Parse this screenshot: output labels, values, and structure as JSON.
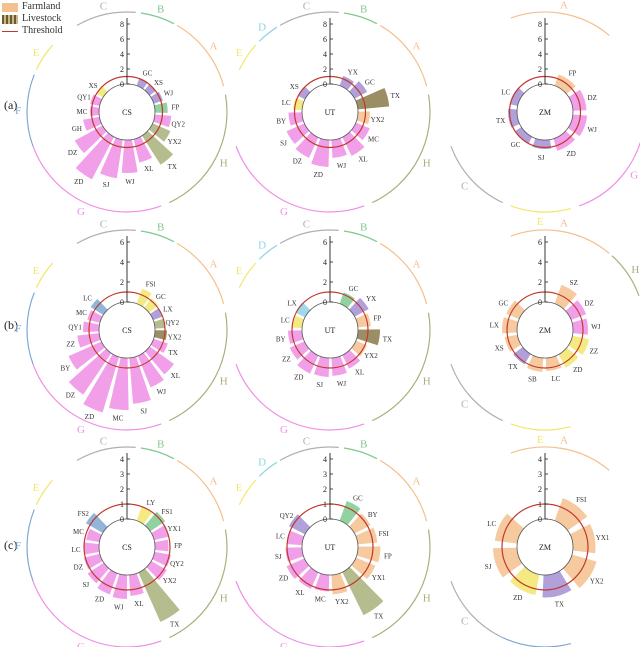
{
  "legend": {
    "farmland": "Farmland",
    "livestock": "Livestock",
    "threshold": "Threshold"
  },
  "row_labels": [
    "(a)",
    "(b)",
    "(c)"
  ],
  "colors": {
    "farmland": "#f4c08e",
    "livestock": "#8a7a4a",
    "threshold": "#c0392b",
    "region_A": "#f4c08e",
    "region_B": "#7fc98f",
    "region_C": "#b0b0b0",
    "region_D": "#8fd4e6",
    "region_E": "#f2e66b",
    "region_F": "#7fa8d4",
    "region_G": "#f08ee6",
    "region_H": "#a8b07a",
    "purple": "#a58fd4"
  },
  "chart_data": [
    {
      "type": "bar",
      "polar": true,
      "center_label": "CS",
      "row": "(a)",
      "axis_ticks": [
        "0",
        "2",
        "4",
        "6",
        "8"
      ],
      "rmax": 8,
      "regions": [
        "E",
        "C",
        "B",
        "A",
        "H",
        "G",
        "F"
      ],
      "labeled_categories": [
        "GC",
        "FP",
        "QY2",
        "YX2",
        "TX",
        "XL",
        "WJ",
        "SJ",
        "ZD",
        "DZ",
        "GH",
        "MC",
        "QY1",
        "XS"
      ],
      "bars": [
        {
          "cat": "GC",
          "v": 1.1,
          "c": "purple"
        },
        {
          "cat": "XS",
          "v": 1.0,
          "c": "purple"
        },
        {
          "cat": "WJ",
          "v": 1.3,
          "c": "purple"
        },
        {
          "cat": "FP",
          "v": 1.7,
          "c": "region_B"
        },
        {
          "cat": "QY2",
          "v": 2.2,
          "c": "region_G"
        },
        {
          "cat": "YX2",
          "v": 2.6,
          "c": "region_H"
        },
        {
          "cat": "TX",
          "v": 4.6,
          "c": "region_H"
        },
        {
          "cat": "XL",
          "v": 3.2,
          "c": "region_G"
        },
        {
          "cat": "WJ",
          "v": 4.4,
          "c": "region_G"
        },
        {
          "cat": "SJ",
          "v": 5.2,
          "c": "region_G"
        },
        {
          "cat": "ZD",
          "v": 6.4,
          "c": "region_G"
        },
        {
          "cat": "DZ",
          "v": 4.2,
          "c": "region_G"
        },
        {
          "cat": "GH",
          "v": 2.2,
          "c": "region_G"
        },
        {
          "cat": "MC",
          "v": 1.2,
          "c": "region_G"
        },
        {
          "cat": "QY1",
          "v": 1.3,
          "c": "region_G"
        },
        {
          "cat": "XS",
          "v": 1.0,
          "c": "region_E"
        }
      ]
    },
    {
      "type": "bar",
      "polar": true,
      "center_label": "UT",
      "row": "(a)",
      "axis_ticks": [
        "0",
        "2",
        "4",
        "6",
        "8"
      ],
      "rmax": 8,
      "regions": [
        "D",
        "B",
        "A",
        "E",
        "H",
        "G",
        "C"
      ],
      "labeled_categories": [
        "YX",
        "GC",
        "TX",
        "MC",
        "XL",
        "WJ",
        "ZD",
        "DZ",
        "SJ",
        "BY",
        "LC",
        "XS"
      ],
      "bars": [
        {
          "cat": "YX",
          "v": 1.4,
          "c": "purple"
        },
        {
          "cat": "GC",
          "v": 1.9,
          "c": "purple"
        },
        {
          "cat": "TX",
          "v": 4.2,
          "c": "livestock"
        },
        {
          "cat": "YX2",
          "v": 1.6,
          "c": "region_A"
        },
        {
          "cat": "MC",
          "v": 2.0,
          "c": "region_G"
        },
        {
          "cat": "XL",
          "v": 2.8,
          "c": "region_G"
        },
        {
          "cat": "WJ",
          "v": 2.4,
          "c": "region_G"
        },
        {
          "cat": "ZD",
          "v": 3.6,
          "c": "region_G"
        },
        {
          "cat": "DZ",
          "v": 3.0,
          "c": "region_G"
        },
        {
          "cat": "SJ",
          "v": 2.6,
          "c": "region_G"
        },
        {
          "cat": "BY",
          "v": 1.8,
          "c": "region_G"
        },
        {
          "cat": "LC",
          "v": 1.2,
          "c": "region_E"
        },
        {
          "cat": "XS",
          "v": 1.1,
          "c": "purple"
        }
      ]
    },
    {
      "type": "bar",
      "polar": true,
      "center_label": "ZM",
      "row": "(a)",
      "axis_ticks": [
        "0",
        "2",
        "4",
        "6",
        "8"
      ],
      "rmax": 8,
      "regions": [
        "A",
        "G",
        "E",
        "C"
      ],
      "labeled_categories": [
        "FP",
        "DZ",
        "WJ",
        "ZD",
        "SJ",
        "GC",
        "TX",
        "LC"
      ],
      "bars": [
        {
          "cat": "FP",
          "v": 1.6,
          "c": "region_A"
        },
        {
          "cat": "DZ",
          "v": 1.8,
          "c": "region_G"
        },
        {
          "cat": "WJ",
          "v": 1.9,
          "c": "region_G"
        },
        {
          "cat": "ZD",
          "v": 1.7,
          "c": "region_G"
        },
        {
          "cat": "SJ",
          "v": 1.2,
          "c": "purple"
        },
        {
          "cat": "GC",
          "v": 1.0,
          "c": "purple"
        },
        {
          "cat": "TX",
          "v": 1.2,
          "c": "purple"
        },
        {
          "cat": "LC",
          "v": 1.1,
          "c": "purple"
        }
      ]
    },
    {
      "type": "bar",
      "polar": true,
      "center_label": "CS",
      "row": "(b)",
      "axis_ticks": [
        "0",
        "2",
        "4",
        "6"
      ],
      "rmax": 6,
      "regions": [
        "E",
        "C",
        "B",
        "A",
        "H",
        "G",
        "F"
      ],
      "labeled_categories": [
        "QY2",
        "YX2",
        "TX",
        "XL",
        "WJ",
        "SJ",
        "MC",
        "DZ",
        "ZD",
        "ZZ",
        "BY",
        "QY1",
        "MC",
        "LC",
        "FSl"
      ],
      "bars": [
        {
          "cat": "FSl",
          "v": 1.6,
          "c": "region_E"
        },
        {
          "cat": "GC",
          "v": 1.2,
          "c": "region_E"
        },
        {
          "cat": "LX",
          "v": 1.0,
          "c": "purple"
        },
        {
          "cat": "QY2",
          "v": 1.0,
          "c": "region_H"
        },
        {
          "cat": "YX2",
          "v": 1.2,
          "c": "livestock"
        },
        {
          "cat": "TX",
          "v": 1.5,
          "c": "region_G"
        },
        {
          "cat": "XL",
          "v": 3.0,
          "c": "region_G"
        },
        {
          "cat": "WJ",
          "v": 3.4,
          "c": "region_G"
        },
        {
          "cat": "SJ",
          "v": 4.6,
          "c": "region_G"
        },
        {
          "cat": "MC",
          "v": 5.2,
          "c": "region_G"
        },
        {
          "cat": "ZD",
          "v": 5.8,
          "c": "region_G"
        },
        {
          "cat": "DZ",
          "v": 5.0,
          "c": "region_G"
        },
        {
          "cat": "BY",
          "v": 3.6,
          "c": "region_G"
        },
        {
          "cat": "ZZ",
          "v": 2.2,
          "c": "region_G"
        },
        {
          "cat": "QY1",
          "v": 1.6,
          "c": "region_G"
        },
        {
          "cat": "MC",
          "v": 1.3,
          "c": "region_G"
        },
        {
          "cat": "LC",
          "v": 1.5,
          "c": "region_F"
        }
      ]
    },
    {
      "type": "bar",
      "polar": true,
      "center_label": "UT",
      "row": "(b)",
      "axis_ticks": [
        "0",
        "2",
        "4",
        "6"
      ],
      "rmax": 6,
      "regions": [
        "D",
        "B",
        "A",
        "E",
        "H",
        "G",
        "C"
      ],
      "labeled_categories": [
        "TX",
        "YX2",
        "XL",
        "WJ",
        "SJ",
        "ZD",
        "ZZ",
        "BY",
        "LC",
        "LX"
      ],
      "bars": [
        {
          "cat": "GC",
          "v": 1.2,
          "c": "region_B"
        },
        {
          "cat": "YX",
          "v": 1.6,
          "c": "purple"
        },
        {
          "cat": "FP",
          "v": 1.3,
          "c": "region_A"
        },
        {
          "cat": "TX",
          "v": 2.2,
          "c": "livestock"
        },
        {
          "cat": "YX2",
          "v": 1.2,
          "c": "region_A"
        },
        {
          "cat": "XL",
          "v": 1.5,
          "c": "region_G"
        },
        {
          "cat": "WJ",
          "v": 1.8,
          "c": "region_G"
        },
        {
          "cat": "SJ",
          "v": 1.9,
          "c": "region_G"
        },
        {
          "cat": "ZD",
          "v": 2.0,
          "c": "region_G"
        },
        {
          "cat": "ZZ",
          "v": 1.6,
          "c": "region_G"
        },
        {
          "cat": "BY",
          "v": 1.4,
          "c": "region_G"
        },
        {
          "cat": "LC",
          "v": 1.0,
          "c": "region_E"
        },
        {
          "cat": "LX",
          "v": 1.1,
          "c": "region_D"
        }
      ]
    },
    {
      "type": "bar",
      "polar": true,
      "center_label": "ZM",
      "row": "(b)",
      "axis_ticks": [
        "0",
        "2",
        "4",
        "6"
      ],
      "rmax": 6,
      "regions": [
        "A",
        "H",
        "E",
        "C"
      ],
      "labeled_categories": [
        "SZ",
        "DZ",
        "WJ",
        "ZZ",
        "ZD",
        "LC",
        "SB",
        "TX",
        "XS",
        "LX",
        "GC"
      ],
      "bars": [
        {
          "cat": "SZ",
          "v": 2.0,
          "c": "region_A"
        },
        {
          "cat": "DZ",
          "v": 1.6,
          "c": "region_G"
        },
        {
          "cat": "WJ",
          "v": 1.5,
          "c": "region_G"
        },
        {
          "cat": "ZZ",
          "v": 1.7,
          "c": "region_E"
        },
        {
          "cat": "ZD",
          "v": 1.5,
          "c": "region_E"
        },
        {
          "cat": "LC",
          "v": 1.3,
          "c": "region_A"
        },
        {
          "cat": "SB",
          "v": 1.4,
          "c": "region_A"
        },
        {
          "cat": "TX",
          "v": 1.2,
          "c": "purple"
        },
        {
          "cat": "XS",
          "v": 1.3,
          "c": "region_A"
        },
        {
          "cat": "LX",
          "v": 1.5,
          "c": "region_A"
        },
        {
          "cat": "GC",
          "v": 1.4,
          "c": "region_A"
        }
      ]
    },
    {
      "type": "bar",
      "polar": true,
      "center_label": "CS",
      "row": "(c)",
      "axis_ticks": [
        "0",
        "1",
        "2",
        "3",
        "4"
      ],
      "rmax": 4,
      "regions": [
        "E",
        "C",
        "B",
        "A",
        "H",
        "G",
        "F"
      ],
      "labeled_categories": [
        "FS1",
        "YX1",
        "FP",
        "QY2",
        "YX2",
        "TX",
        "XL",
        "WJ",
        "ZD",
        "SJ",
        "DZ",
        "LC",
        "MC",
        "FS2",
        "LY"
      ],
      "bars": [
        {
          "cat": "LY",
          "v": 1.0,
          "c": "region_E"
        },
        {
          "cat": "FS1",
          "v": 1.2,
          "c": "region_B"
        },
        {
          "cat": "YX1",
          "v": 1.0,
          "c": "region_G"
        },
        {
          "cat": "FP",
          "v": 0.9,
          "c": "region_G"
        },
        {
          "cat": "QY2",
          "v": 1.1,
          "c": "region_G"
        },
        {
          "cat": "YX2",
          "v": 1.2,
          "c": "region_G"
        },
        {
          "cat": "TX",
          "v": 3.6,
          "c": "region_H"
        },
        {
          "cat": "XL",
          "v": 1.4,
          "c": "region_G"
        },
        {
          "cat": "WJ",
          "v": 1.6,
          "c": "region_G"
        },
        {
          "cat": "ZD",
          "v": 1.5,
          "c": "region_G"
        },
        {
          "cat": "SJ",
          "v": 1.3,
          "c": "region_G"
        },
        {
          "cat": "DZ",
          "v": 1.1,
          "c": "region_G"
        },
        {
          "cat": "LC",
          "v": 1.0,
          "c": "region_G"
        },
        {
          "cat": "MC",
          "v": 0.9,
          "c": "region_G"
        },
        {
          "cat": "FS2",
          "v": 1.3,
          "c": "region_F"
        }
      ]
    },
    {
      "type": "bar",
      "polar": true,
      "center_label": "UT",
      "row": "(c)",
      "axis_ticks": [
        "0",
        "1",
        "2",
        "3",
        "4"
      ],
      "rmax": 4,
      "regions": [
        "D",
        "B",
        "A",
        "E",
        "H",
        "G",
        "C"
      ],
      "labeled_categories": [
        "BY",
        "FSI",
        "FP",
        "YX1",
        "TX",
        "YX2",
        "MC",
        "XL",
        "ZD",
        "SJ",
        "LC",
        "QY2"
      ],
      "bars": [
        {
          "cat": "GC",
          "v": 1.4,
          "c": "region_B"
        },
        {
          "cat": "BY",
          "v": 1.2,
          "c": "region_A"
        },
        {
          "cat": "FSI",
          "v": 1.3,
          "c": "region_A"
        },
        {
          "cat": "FP",
          "v": 1.5,
          "c": "region_A"
        },
        {
          "cat": "YX1",
          "v": 1.4,
          "c": "region_A"
        },
        {
          "cat": "TX",
          "v": 3.2,
          "c": "region_H"
        },
        {
          "cat": "YX2",
          "v": 1.3,
          "c": "region_A"
        },
        {
          "cat": "MC",
          "v": 1.1,
          "c": "region_G"
        },
        {
          "cat": "XL",
          "v": 1.2,
          "c": "region_G"
        },
        {
          "cat": "ZD",
          "v": 1.3,
          "c": "region_G"
        },
        {
          "cat": "SJ",
          "v": 1.1,
          "c": "region_G"
        },
        {
          "cat": "LC",
          "v": 1.0,
          "c": "region_G"
        },
        {
          "cat": "QY2",
          "v": 1.2,
          "c": "purple"
        }
      ]
    },
    {
      "type": "bar",
      "polar": true,
      "center_label": "ZM",
      "row": "(c)",
      "axis_ticks": [
        "0",
        "1",
        "2",
        "3",
        "4"
      ],
      "rmax": 4,
      "regions": [
        "A",
        "C",
        "F"
      ],
      "labeled_categories": [
        "FSI",
        "YX1",
        "YX2",
        "TX"
      ],
      "bars": [
        {
          "cat": "FSI",
          "v": 1.6,
          "c": "region_A"
        },
        {
          "cat": "YX1",
          "v": 1.5,
          "c": "region_A"
        },
        {
          "cat": "YX2",
          "v": 1.7,
          "c": "region_A"
        },
        {
          "cat": "TX",
          "v": 1.5,
          "c": "purple"
        },
        {
          "cat": "ZD",
          "v": 1.4,
          "c": "region_E"
        },
        {
          "cat": "SJ",
          "v": 1.6,
          "c": "region_A"
        },
        {
          "cat": "LC",
          "v": 1.5,
          "c": "region_A"
        }
      ]
    }
  ]
}
